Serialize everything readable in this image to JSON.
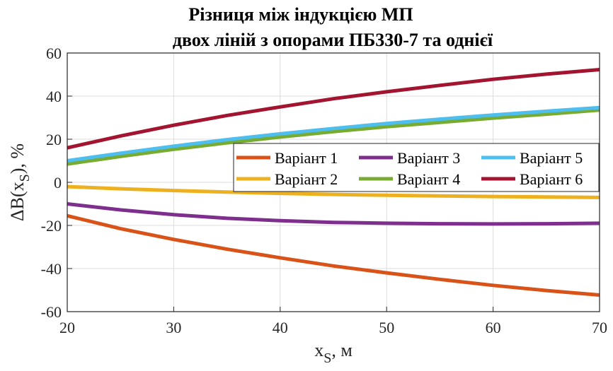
{
  "chart_data": {
    "type": "line",
    "title_line1": "Різниця між індукцією МП",
    "title_line2": "двох ліній з опорами ПБ330-7 та однієї",
    "xlabel": "x",
    "xlabel_sub": "S",
    "xlabel_unit": ", м",
    "ylabel": "ΔB(x",
    "ylabel_sub": "S",
    "ylabel_unit": "), %",
    "xlim": [
      20,
      70
    ],
    "ylim": [
      -60,
      60
    ],
    "xticks": [
      20,
      30,
      40,
      50,
      60,
      70
    ],
    "yticks": [
      -60,
      -40,
      -20,
      0,
      20,
      40,
      60
    ],
    "grid": true,
    "legend_position": "right, upper middle",
    "legend_columns": 3,
    "x": [
      20,
      25,
      30,
      35,
      40,
      45,
      50,
      55,
      60,
      65,
      70
    ],
    "series": [
      {
        "name": "Варіант 1",
        "color": "#D95319",
        "values": [
          -15.5,
          -21.5,
          -26.5,
          -31.0,
          -35.0,
          -38.8,
          -42.0,
          -45.0,
          -47.8,
          -50.2,
          -52.3
        ]
      },
      {
        "name": "Варіант 2",
        "color": "#EDB120",
        "values": [
          -2.0,
          -3.0,
          -3.8,
          -4.5,
          -5.1,
          -5.6,
          -6.0,
          -6.3,
          -6.6,
          -6.8,
          -7.0
        ]
      },
      {
        "name": "Варіант 3",
        "color": "#7E2F8E",
        "values": [
          -10.0,
          -12.8,
          -15.0,
          -16.7,
          -17.8,
          -18.6,
          -19.0,
          -19.2,
          -19.3,
          -19.2,
          -19.0
        ]
      },
      {
        "name": "Варіант 4",
        "color": "#77AC30",
        "values": [
          8.5,
          12.0,
          15.3,
          18.3,
          21.0,
          23.5,
          25.8,
          27.8,
          29.8,
          31.6,
          33.5
        ]
      },
      {
        "name": "Варіант 5",
        "color": "#4DBEEE",
        "values": [
          10.0,
          13.5,
          16.8,
          19.8,
          22.5,
          25.0,
          27.3,
          29.3,
          31.2,
          33.0,
          34.7
        ]
      },
      {
        "name": "Варіант 6",
        "color": "#A2142F",
        "values": [
          16.0,
          21.5,
          26.5,
          31.0,
          35.0,
          38.8,
          42.0,
          45.0,
          47.8,
          50.2,
          52.3
        ]
      }
    ]
  }
}
